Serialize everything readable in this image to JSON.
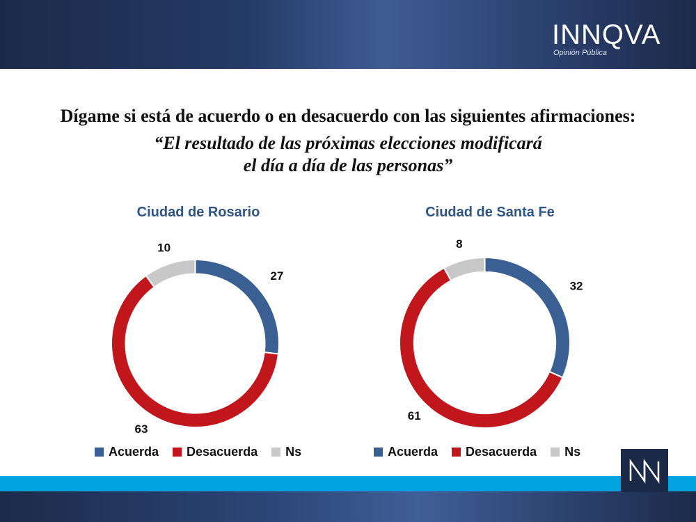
{
  "header": {
    "logo_text": "INNQVA",
    "logo_sub": "Opinión Pública"
  },
  "question": "Dígame si está de acuerdo o en desacuerdo con las siguientes afirmaciones:",
  "quote_line1": "“El resultado de las próximas elecciones modificará",
  "quote_line2": "el día a día de las personas”",
  "colors": {
    "acuerda": "#3a6093",
    "desacuerda": "#c0161c",
    "ns": "#c8c8c8",
    "accent": "#2e5586",
    "cyan": "#00a3e0",
    "navy": "#1c2a4a"
  },
  "chart_data": [
    {
      "type": "pie",
      "title": "Ciudad de Rosario",
      "categories": [
        "Acuerda",
        "Desacuerda",
        "Ns"
      ],
      "values": [
        27,
        63,
        10
      ],
      "labels": [
        "27",
        "63",
        "10"
      ]
    },
    {
      "type": "pie",
      "title": "Ciudad de Santa Fe",
      "categories": [
        "Acuerda",
        "Desacuerda",
        "Ns"
      ],
      "values": [
        32,
        61,
        8
      ],
      "labels": [
        "32",
        "61",
        "8"
      ]
    }
  ],
  "legend": [
    "Acuerda",
    "Desacuerda",
    "Ns"
  ],
  "footer": {
    "nn_icon": "nn-logo-icon"
  }
}
